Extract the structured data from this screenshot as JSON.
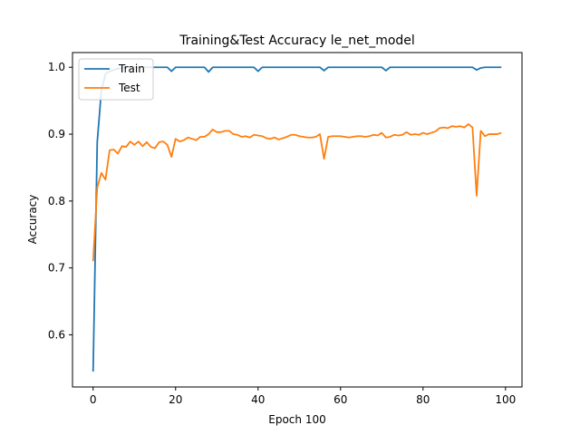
{
  "chart_data": {
    "type": "line",
    "title": "Training&Test Accuracy le_net_model",
    "xlabel": "Epoch 100",
    "ylabel": "Accuracy",
    "xlim": [
      -5,
      104
    ],
    "ylim": [
      0.522,
      1.022
    ],
    "xticks": [
      0,
      20,
      40,
      60,
      80,
      100
    ],
    "yticks": [
      0.6,
      0.7,
      0.8,
      0.9,
      1.0
    ],
    "xtick_labels": [
      "0",
      "20",
      "40",
      "60",
      "80",
      "100"
    ],
    "ytick_labels": [
      "0.6",
      "0.7",
      "0.8",
      "0.9",
      "1.0"
    ],
    "grid": false,
    "legend_position": "top-left",
    "series": [
      {
        "name": "Train",
        "color": "#1f77b4",
        "x": [
          0,
          1,
          2,
          3,
          4,
          5,
          6,
          7,
          8,
          9,
          10,
          11,
          12,
          13,
          14,
          15,
          16,
          17,
          18,
          19,
          20,
          21,
          22,
          23,
          24,
          25,
          26,
          27,
          28,
          29,
          30,
          31,
          32,
          33,
          34,
          35,
          36,
          37,
          38,
          39,
          40,
          41,
          42,
          43,
          44,
          45,
          46,
          47,
          48,
          49,
          50,
          51,
          52,
          53,
          54,
          55,
          56,
          57,
          58,
          59,
          60,
          61,
          62,
          63,
          64,
          65,
          66,
          67,
          68,
          69,
          70,
          71,
          72,
          73,
          74,
          75,
          76,
          77,
          78,
          79,
          80,
          81,
          82,
          83,
          84,
          85,
          86,
          87,
          88,
          89,
          90,
          91,
          92,
          93,
          94,
          95,
          96,
          97,
          98,
          99
        ],
        "values": [
          0.545,
          0.888,
          0.965,
          0.99,
          0.994,
          0.996,
          0.998,
          0.999,
          1.0,
          1.0,
          1.0,
          1.0,
          1.0,
          1.0,
          1.0,
          1.0,
          1.0,
          1.0,
          1.0,
          0.994,
          1.0,
          1.0,
          1.0,
          1.0,
          1.0,
          1.0,
          1.0,
          1.0,
          0.993,
          1.0,
          1.0,
          1.0,
          1.0,
          1.0,
          1.0,
          1.0,
          1.0,
          1.0,
          1.0,
          1.0,
          0.994,
          1.0,
          1.0,
          1.0,
          1.0,
          1.0,
          1.0,
          1.0,
          1.0,
          1.0,
          1.0,
          1.0,
          1.0,
          1.0,
          1.0,
          1.0,
          0.995,
          1.0,
          1.0,
          1.0,
          1.0,
          1.0,
          1.0,
          1.0,
          1.0,
          1.0,
          1.0,
          1.0,
          1.0,
          1.0,
          1.0,
          0.995,
          1.0,
          1.0,
          1.0,
          1.0,
          1.0,
          1.0,
          1.0,
          1.0,
          1.0,
          1.0,
          1.0,
          1.0,
          1.0,
          1.0,
          1.0,
          1.0,
          1.0,
          1.0,
          1.0,
          1.0,
          1.0,
          0.996,
          0.999,
          1.0,
          1.0,
          1.0,
          1.0,
          1.0
        ]
      },
      {
        "name": "Test",
        "color": "#ff7f0e",
        "x": [
          0,
          1,
          2,
          3,
          4,
          5,
          6,
          7,
          8,
          9,
          10,
          11,
          12,
          13,
          14,
          15,
          16,
          17,
          18,
          19,
          20,
          21,
          22,
          23,
          24,
          25,
          26,
          27,
          28,
          29,
          30,
          31,
          32,
          33,
          34,
          35,
          36,
          37,
          38,
          39,
          40,
          41,
          42,
          43,
          44,
          45,
          46,
          47,
          48,
          49,
          50,
          51,
          52,
          53,
          54,
          55,
          56,
          57,
          58,
          59,
          60,
          61,
          62,
          63,
          64,
          65,
          66,
          67,
          68,
          69,
          70,
          71,
          72,
          73,
          74,
          75,
          76,
          77,
          78,
          79,
          80,
          81,
          82,
          83,
          84,
          85,
          86,
          87,
          88,
          89,
          90,
          91,
          92,
          93,
          94,
          95,
          96,
          97,
          98,
          99
        ],
        "values": [
          0.71,
          0.82,
          0.842,
          0.832,
          0.876,
          0.877,
          0.871,
          0.882,
          0.881,
          0.889,
          0.884,
          0.889,
          0.882,
          0.888,
          0.881,
          0.879,
          0.888,
          0.889,
          0.884,
          0.866,
          0.893,
          0.889,
          0.891,
          0.895,
          0.893,
          0.891,
          0.896,
          0.896,
          0.9,
          0.907,
          0.903,
          0.903,
          0.905,
          0.905,
          0.9,
          0.899,
          0.896,
          0.897,
          0.895,
          0.899,
          0.898,
          0.897,
          0.894,
          0.893,
          0.895,
          0.892,
          0.894,
          0.896,
          0.899,
          0.899,
          0.897,
          0.896,
          0.895,
          0.895,
          0.896,
          0.9,
          0.863,
          0.896,
          0.897,
          0.897,
          0.897,
          0.896,
          0.895,
          0.896,
          0.897,
          0.897,
          0.896,
          0.897,
          0.899,
          0.898,
          0.902,
          0.895,
          0.896,
          0.899,
          0.898,
          0.899,
          0.903,
          0.899,
          0.9,
          0.899,
          0.902,
          0.9,
          0.902,
          0.904,
          0.909,
          0.91,
          0.909,
          0.912,
          0.911,
          0.912,
          0.91,
          0.915,
          0.91,
          0.808,
          0.905,
          0.897,
          0.9,
          0.9,
          0.9,
          0.902
        ]
      }
    ]
  }
}
